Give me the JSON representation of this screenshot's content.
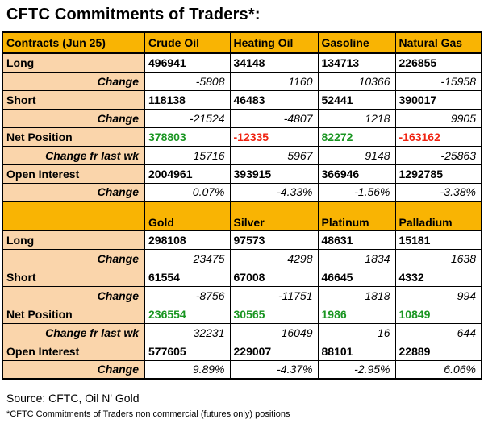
{
  "title": "CFTC Commitments of Traders*:",
  "colors": {
    "header_bg": "#F9B403",
    "label_bg": "#FAD5AB",
    "positive_value": "#1A9622",
    "negative_value": "#F02311"
  },
  "energy": {
    "header": [
      "Contracts (Jun 25)",
      "Crude Oil",
      "Heating Oil",
      "Gasoline",
      "Natural Gas"
    ],
    "rows": [
      {
        "label": "Long",
        "values": [
          "496941",
          "34148",
          "134713",
          "226855"
        ]
      },
      {
        "label": "Change",
        "values": [
          "-5808",
          "1160",
          "10366",
          "-15958"
        ]
      },
      {
        "label": "Short",
        "values": [
          "118138",
          "46483",
          "52441",
          "390017"
        ]
      },
      {
        "label": "Change",
        "values": [
          "-21524",
          "-4807",
          "1218",
          "9905"
        ]
      },
      {
        "label": "Net Position",
        "values": [
          "378803",
          "-12335",
          "82272",
          "-163162"
        ]
      },
      {
        "label": "Change fr last wk",
        "values": [
          "15716",
          "5967",
          "9148",
          "-25863"
        ]
      },
      {
        "label": "Open Interest",
        "values": [
          "2004961",
          "393915",
          "366946",
          "1292785"
        ]
      },
      {
        "label": "Change",
        "values": [
          "0.07%",
          "-4.33%",
          "-1.56%",
          "-3.38%"
        ]
      }
    ]
  },
  "metals": {
    "header": [
      "",
      "Gold",
      "Silver",
      "Platinum",
      "Palladium"
    ],
    "rows": [
      {
        "label": "Long",
        "values": [
          "298108",
          "97573",
          "48631",
          "15181"
        ]
      },
      {
        "label": "Change",
        "values": [
          "23475",
          "4298",
          "1834",
          "1638"
        ]
      },
      {
        "label": "Short",
        "values": [
          "61554",
          "67008",
          "46645",
          "4332"
        ]
      },
      {
        "label": "Change",
        "values": [
          "-8756",
          "-11751",
          "1818",
          "994"
        ]
      },
      {
        "label": "Net Position",
        "values": [
          "236554",
          "30565",
          "1986",
          "10849"
        ]
      },
      {
        "label": "Change fr last wk",
        "values": [
          "32231",
          "16049",
          "16",
          "644"
        ]
      },
      {
        "label": "Open Interest",
        "values": [
          "577605",
          "229007",
          "88101",
          "22889"
        ]
      },
      {
        "label": "Change",
        "values": [
          "9.89%",
          "-4.37%",
          "-2.95%",
          "6.06%"
        ]
      }
    ]
  },
  "footer": {
    "source": "Source: CFTC, Oil N' Gold",
    "note": "*CFTC Commitments of Traders non commercial (futures only) positions"
  }
}
